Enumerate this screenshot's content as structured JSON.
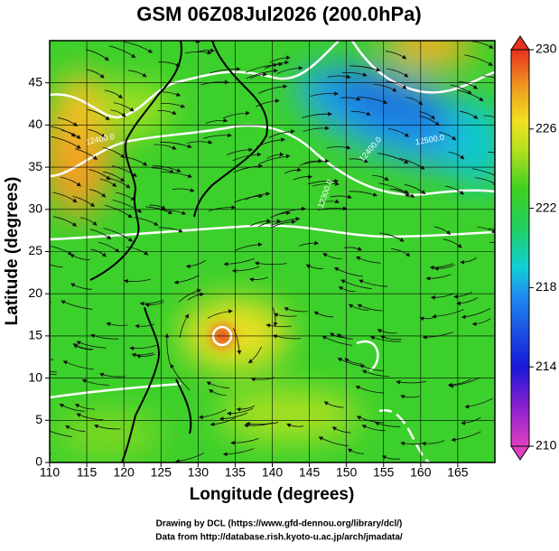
{
  "chart_data": {
    "type": "map",
    "title": "GSM 06Z08Jul2026 (200.0hPa)",
    "x_label": "Longitude (degrees)",
    "y_label": "Latitude  (degrees)",
    "xlim": [
      110,
      170
    ],
    "xticks": [
      110,
      115,
      120,
      125,
      130,
      135,
      140,
      145,
      150,
      155,
      160,
      165
    ],
    "ylim": [
      0,
      50
    ],
    "yticks": [
      0,
      5,
      10,
      15,
      20,
      25,
      30,
      35,
      40,
      45
    ],
    "grid": true,
    "colorbar": {
      "lim": [
        210,
        230
      ],
      "ticks": [
        210,
        214,
        218,
        222,
        226,
        230
      ]
    },
    "contour_labels": [
      "12400.0",
      "12500.0",
      "12400.0",
      "12300.0"
    ],
    "footer": [
      "Drawing by DCL (https://www.gfd-dennou.org/library/dcl/)",
      "Data from http://database.rish.kyoto-u.ac.jp/arch/jmadata/"
    ]
  }
}
